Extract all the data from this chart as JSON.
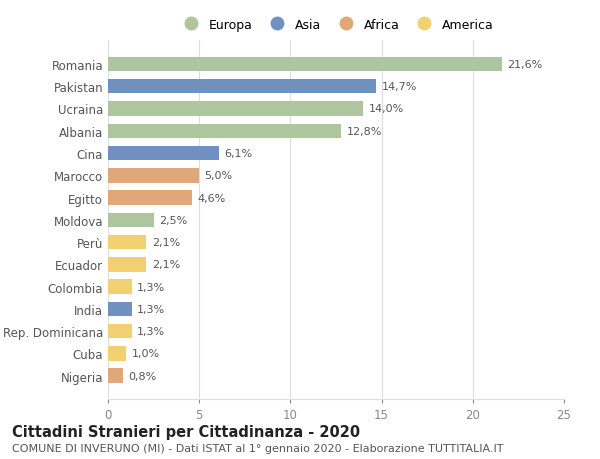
{
  "countries": [
    "Romania",
    "Pakistan",
    "Ucraina",
    "Albania",
    "Cina",
    "Marocco",
    "Egitto",
    "Moldova",
    "Perù",
    "Ecuador",
    "Colombia",
    "India",
    "Rep. Dominicana",
    "Cuba",
    "Nigeria"
  ],
  "values": [
    21.6,
    14.7,
    14.0,
    12.8,
    6.1,
    5.0,
    4.6,
    2.5,
    2.1,
    2.1,
    1.3,
    1.3,
    1.3,
    1.0,
    0.8
  ],
  "labels": [
    "21,6%",
    "14,7%",
    "14,0%",
    "12,8%",
    "6,1%",
    "5,0%",
    "4,6%",
    "2,5%",
    "2,1%",
    "2,1%",
    "1,3%",
    "1,3%",
    "1,3%",
    "1,0%",
    "0,8%"
  ],
  "continents": [
    "Europa",
    "Asia",
    "Europa",
    "Europa",
    "Asia",
    "Africa",
    "Africa",
    "Europa",
    "America",
    "America",
    "America",
    "Asia",
    "America",
    "America",
    "Africa"
  ],
  "continent_colors": {
    "Europa": "#aec6a0",
    "Asia": "#7090c0",
    "Africa": "#e0a878",
    "America": "#f0d070"
  },
  "legend_labels": [
    "Europa",
    "Asia",
    "Africa",
    "America"
  ],
  "xlim": [
    0,
    25
  ],
  "xticks": [
    0,
    5,
    10,
    15,
    20,
    25
  ],
  "title_line1": "Cittadini Stranieri per Cittadinanza - 2020",
  "title_line2": "COMUNE DI INVERUNO (MI) - Dati ISTAT al 1° gennaio 2020 - Elaborazione TUTTITALIA.IT",
  "background_color": "#ffffff",
  "grid_color": "#dddddd",
  "bar_height": 0.65,
  "label_fontsize": 8.0,
  "ytick_fontsize": 8.5,
  "xtick_fontsize": 8.5,
  "title1_fontsize": 10.5,
  "title2_fontsize": 8.0
}
